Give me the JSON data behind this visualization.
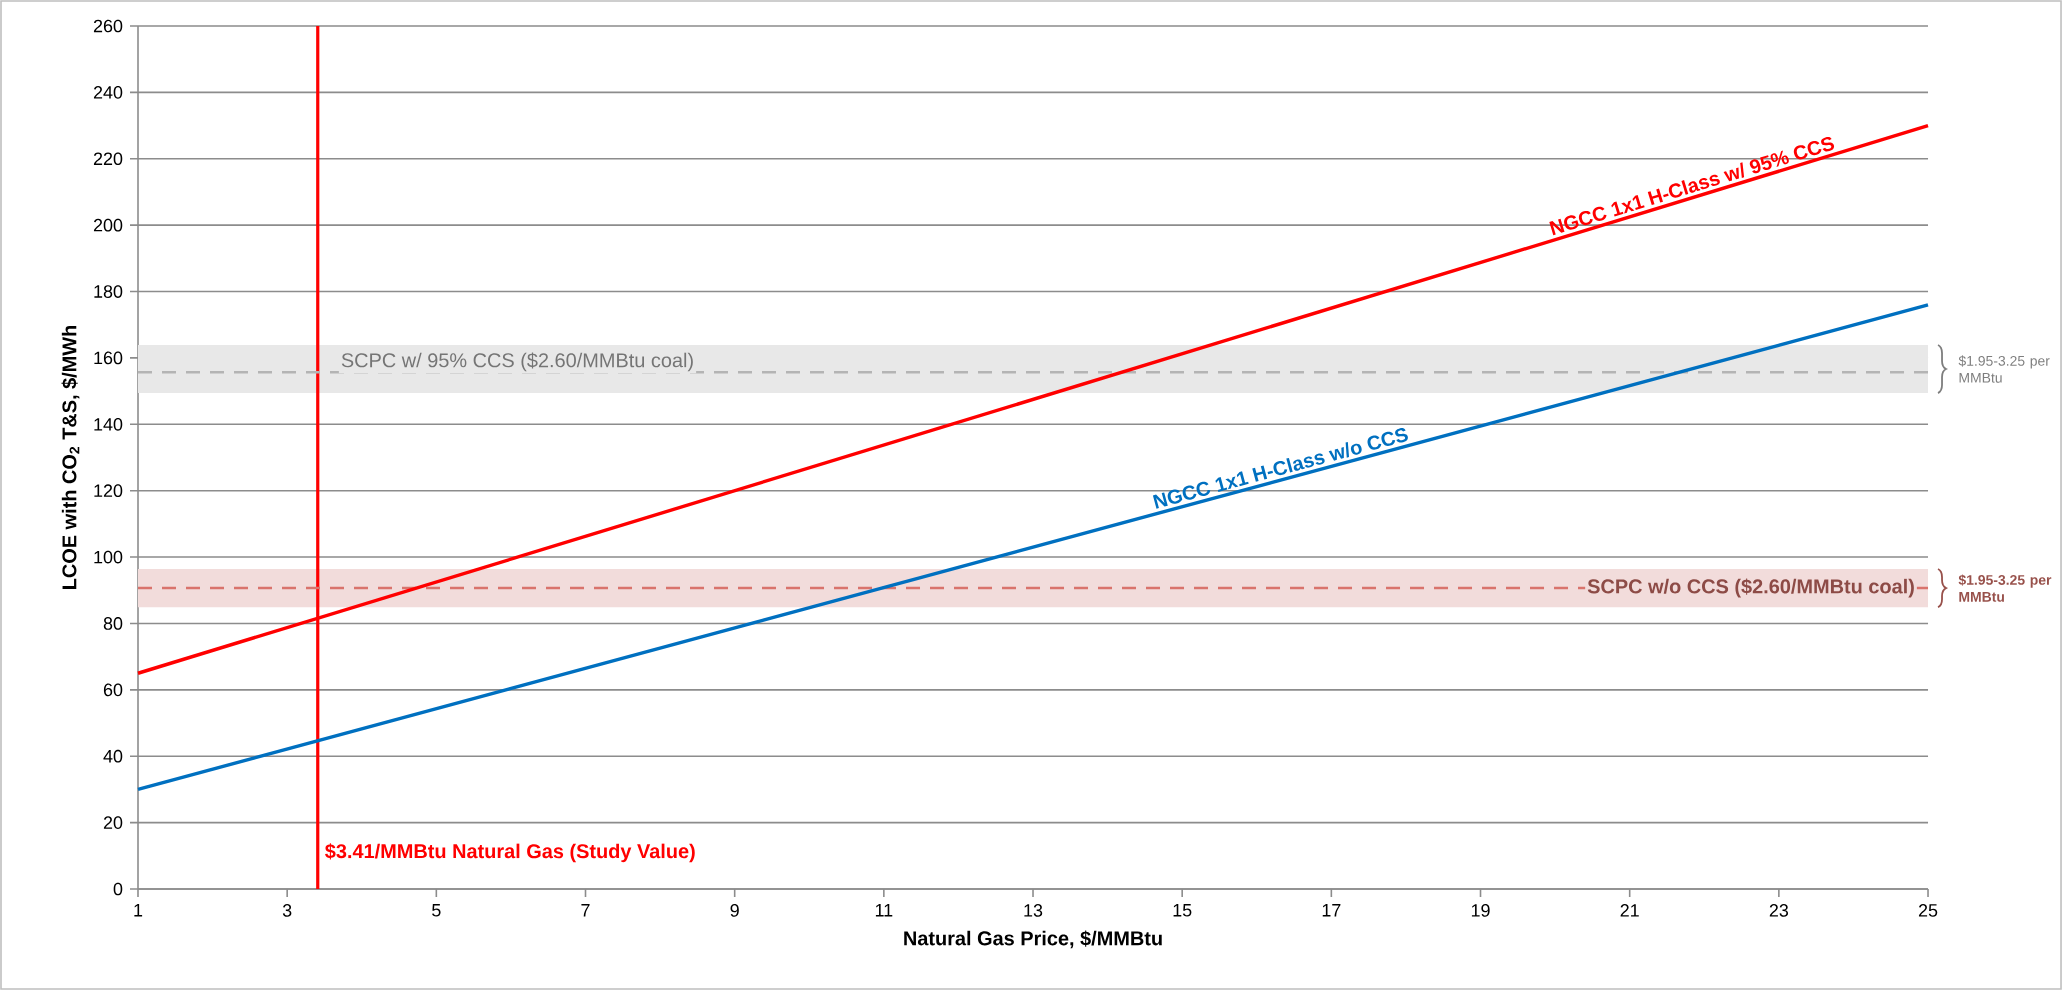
{
  "chart_data": {
    "type": "line",
    "xlabel": "Natural Gas Price, $/MMBtu",
    "ylabel": "LCOE with CO$_{2}$ T&S, $/MWh",
    "x": [
      1,
      25
    ],
    "series": [
      {
        "name": "NGCC 1x1 H-Class w/ 95% CCS",
        "color": "#ff0000",
        "values": [
          65,
          230
        ]
      },
      {
        "name": "NGCC 1x1 H-Class w/o CCS",
        "color": "#0070c0",
        "values": [
          30,
          176
        ]
      }
    ],
    "xlim": [
      1,
      25
    ],
    "xticks": [
      1,
      3,
      5,
      7,
      9,
      11,
      13,
      15,
      17,
      19,
      21,
      23,
      25
    ],
    "ylim": [
      0,
      260
    ],
    "yticks": [
      0,
      20,
      40,
      60,
      80,
      100,
      120,
      140,
      160,
      180,
      200,
      220,
      240,
      260
    ],
    "ref_lines": [
      {
        "axis": "x",
        "value": 3.41,
        "label": "$3.41/MMBtu Natural Gas (Study Value)",
        "color": "#ff0000",
        "line_style": "solid"
      },
      {
        "axis": "y",
        "value": 155.7,
        "label": "SCPC w/ 95% CCS ($2.60/MMBtu coal)",
        "color": "#b4b4b4",
        "line_style": "dashed"
      },
      {
        "axis": "y",
        "value": 90.7,
        "label": "SCPC w/o CCS ($2.60/MMBtu coal)",
        "color": "#d9736c",
        "line_style": "dashed"
      }
    ],
    "bands": [
      {
        "axis": "y",
        "from": 149.4,
        "to": 163.9,
        "label": "$1.95-3.25 per MMBtu",
        "color": "#e8e8e8"
      },
      {
        "axis": "y",
        "from": 84.9,
        "to": 96.4,
        "label": "$1.95-3.25 per MMBtu",
        "color": "#f2dcdb"
      }
    ],
    "grid": "y",
    "marker": "none",
    "line_style": "solid"
  }
}
